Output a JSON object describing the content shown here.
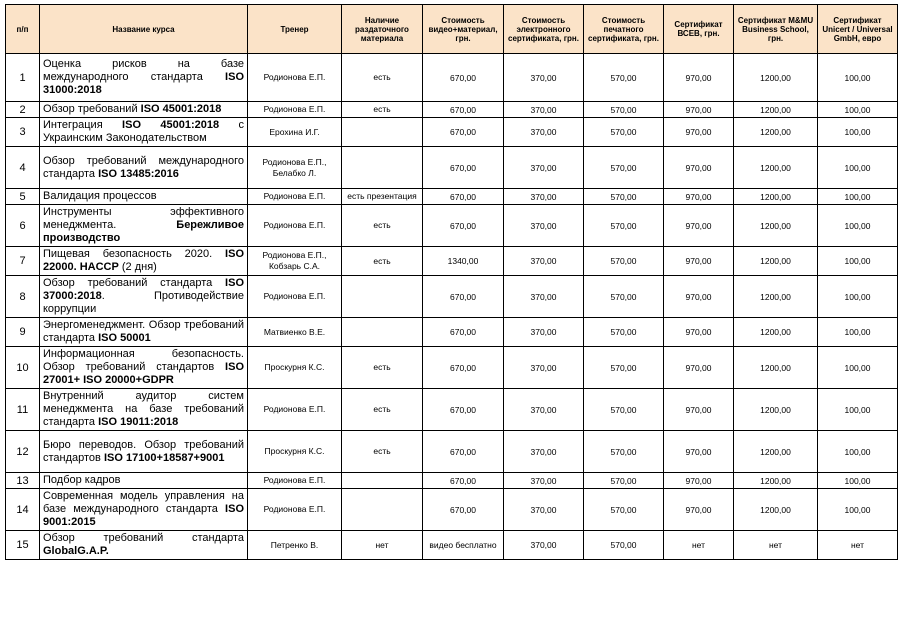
{
  "headers": [
    "п/п",
    "Название курса",
    "Тренер",
    "Наличие раздаточного материала",
    "Стоимость видео+материал, грн.",
    "Стоимость электронного сертификата, грн.",
    "Стоимость печатного сертификата, грн.",
    "Сертификат ВСЕВ, грн.",
    "Сертификат M&MU Business School, грн.",
    "Сертификат Unicert / Universal GmbH, евро"
  ],
  "rows": [
    {
      "num": "1",
      "name": [
        {
          "t": "Оценка рисков на базе международного стандарта "
        },
        {
          "t": "ISO 31000:2018",
          "b": true
        }
      ],
      "trainer": "Родионова Е.П.",
      "material": "есть",
      "video": "670,00",
      "ecert": "370,00",
      "pcert": "570,00",
      "bceb": "970,00",
      "mmu": "1200,00",
      "unicert": "100,00"
    },
    {
      "num": "2",
      "name": [
        {
          "t": "Обзор требований "
        },
        {
          "t": "ISO 45001:2018",
          "b": true
        }
      ],
      "trainer": "Родионова Е.П.",
      "material": "есть",
      "video": "670,00",
      "ecert": "370,00",
      "pcert": "570,00",
      "bceb": "970,00",
      "mmu": "1200,00",
      "unicert": "100,00"
    },
    {
      "num": "3",
      "name": [
        {
          "t": "Интеграция "
        },
        {
          "t": "ISO 45001:2018",
          "b": true
        },
        {
          "t": " с Украинским Законодательством"
        }
      ],
      "trainer": "Ерохина И.Г.",
      "material": "",
      "video": "670,00",
      "ecert": "370,00",
      "pcert": "570,00",
      "bceb": "970,00",
      "mmu": "1200,00",
      "unicert": "100,00"
    },
    {
      "num": "4",
      "name": [
        {
          "t": "Обзор требований международного стандарта "
        },
        {
          "t": "ISO 13485:2016",
          "b": true
        }
      ],
      "trainer": "Родионова Е.П., Белабко Л.",
      "material": "",
      "video": "670,00",
      "ecert": "370,00",
      "pcert": "570,00",
      "bceb": "970,00",
      "mmu": "1200,00",
      "unicert": "100,00"
    },
    {
      "num": "5",
      "name": [
        {
          "t": "Валидация процессов"
        }
      ],
      "trainer": "Родионова Е.П.",
      "material": "есть презентация",
      "video": "670,00",
      "ecert": "370,00",
      "pcert": "570,00",
      "bceb": "970,00",
      "mmu": "1200,00",
      "unicert": "100,00"
    },
    {
      "num": "6",
      "name": [
        {
          "t": "Инструменты эффективного менеджмента. "
        },
        {
          "t": "Бережливое производство",
          "b": true
        }
      ],
      "trainer": "Родионова Е.П.",
      "material": "есть",
      "video": "670,00",
      "ecert": "370,00",
      "pcert": "570,00",
      "bceb": "970,00",
      "mmu": "1200,00",
      "unicert": "100,00"
    },
    {
      "num": "7",
      "name": [
        {
          "t": "Пищевая безопасность 2020. "
        },
        {
          "t": "ISO 22000. HACCP",
          "b": true
        },
        {
          "t": " (2 дня)"
        }
      ],
      "trainer": "Родионова Е.П., Кобзарь С.А.",
      "material": "есть",
      "video": "1340,00",
      "ecert": "370,00",
      "pcert": "570,00",
      "bceb": "970,00",
      "mmu": "1200,00",
      "unicert": "100,00"
    },
    {
      "num": "8",
      "name": [
        {
          "t": "Обзор требований стандарта "
        },
        {
          "t": "ISO 37000:2018",
          "b": true
        },
        {
          "t": ". Противодействие коррупции"
        }
      ],
      "trainer": "Родионова Е.П.",
      "material": "",
      "video": "670,00",
      "ecert": "370,00",
      "pcert": "570,00",
      "bceb": "970,00",
      "mmu": "1200,00",
      "unicert": "100,00"
    },
    {
      "num": "9",
      "name": [
        {
          "t": "Энергоменеджмент. Обзор требований стандарта "
        },
        {
          "t": "ISO 50001",
          "b": true
        }
      ],
      "trainer": "Матвиенко В.Е.",
      "material": "",
      "video": "670,00",
      "ecert": "370,00",
      "pcert": "570,00",
      "bceb": "970,00",
      "mmu": "1200,00",
      "unicert": "100,00"
    },
    {
      "num": "10",
      "name": [
        {
          "t": "Информационная безопасность. Обзор требований стандартов "
        },
        {
          "t": "ISO 27001+ ISO 20000+GDPR",
          "b": true
        }
      ],
      "trainer": "Проскурня К.С.",
      "material": "есть",
      "video": "670,00",
      "ecert": "370,00",
      "pcert": "570,00",
      "bceb": "970,00",
      "mmu": "1200,00",
      "unicert": "100,00"
    },
    {
      "num": "11",
      "name": [
        {
          "t": "Внутренний аудитор систем менеджмента на базе требований стандарта "
        },
        {
          "t": "ISO 19011:2018",
          "b": true
        }
      ],
      "trainer": "Родионова Е.П.",
      "material": "есть",
      "video": "670,00",
      "ecert": "370,00",
      "pcert": "570,00",
      "bceb": "970,00",
      "mmu": "1200,00",
      "unicert": "100,00"
    },
    {
      "num": "12",
      "name": [
        {
          "t": "Бюро переводов. Обзор требований стандартов "
        },
        {
          "t": "ISO 17100+18587+9001",
          "b": true
        }
      ],
      "trainer": "Проскурня К.С.",
      "material": "есть",
      "video": "670,00",
      "ecert": "370,00",
      "pcert": "570,00",
      "bceb": "970,00",
      "mmu": "1200,00",
      "unicert": "100,00"
    },
    {
      "num": "13",
      "name": [
        {
          "t": "Подбор кадров"
        }
      ],
      "trainer": "Родионова Е.П.",
      "material": "",
      "video": "670,00",
      "ecert": "370,00",
      "pcert": "570,00",
      "bceb": "970,00",
      "mmu": "1200,00",
      "unicert": "100,00"
    },
    {
      "num": "14",
      "name": [
        {
          "t": "Современная модель управления на базе международного стандарта "
        },
        {
          "t": "ISO 9001:2015",
          "b": true
        }
      ],
      "trainer": "Родионова Е.П.",
      "material": "",
      "video": "670,00",
      "ecert": "370,00",
      "pcert": "570,00",
      "bceb": "970,00",
      "mmu": "1200,00",
      "unicert": "100,00"
    },
    {
      "num": "15",
      "name": [
        {
          "t": "Обзор требований стандарта "
        },
        {
          "t": "GlobalG.A.P.",
          "b": true
        }
      ],
      "trainer": "Петренко В.",
      "material": "нет",
      "video": "видео бесплатно",
      "ecert": "370,00",
      "pcert": "570,00",
      "bceb": "нет",
      "mmu": "нет",
      "unicert": "нет"
    }
  ]
}
